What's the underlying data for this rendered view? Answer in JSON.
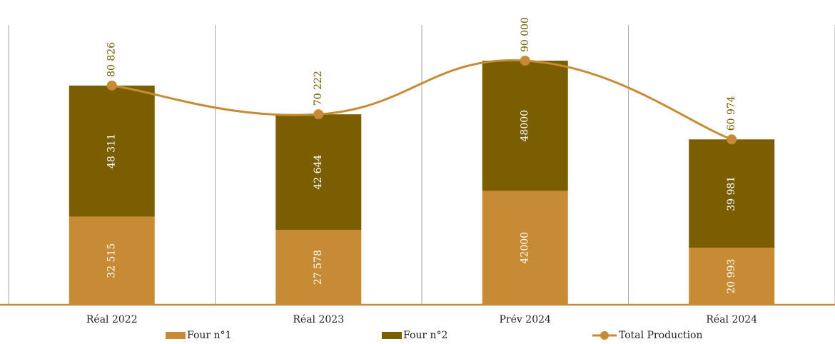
{
  "chart_data": {
    "type": "bar",
    "stacked": true,
    "categories": [
      "Réal 2022",
      "Réal 2023",
      "Prév 2024",
      "Réal 2024"
    ],
    "series": [
      {
        "name": "Four n°1",
        "kind": "bar",
        "color": "#c68b34",
        "values": [
          32515,
          27578,
          42000,
          20993
        ],
        "labels": [
          "32 515",
          "27 578",
          "42000",
          "20 993"
        ]
      },
      {
        "name": "Four n°2",
        "kind": "bar",
        "color": "#7b5d02",
        "values": [
          48311,
          42644,
          48000,
          39981
        ],
        "labels": [
          "48 311",
          "42 644",
          "48000",
          "39 981"
        ]
      },
      {
        "name": "Total Production",
        "kind": "line",
        "color": "#c68b34",
        "values": [
          80826,
          70222,
          90000,
          60974
        ],
        "labels": [
          "80 826",
          "70 222",
          "90 000",
          "60 974"
        ]
      }
    ],
    "ylim": [
      0,
      100000
    ],
    "legend_position": "bottom",
    "line_smooth": true,
    "grid": "vertical category separators"
  }
}
